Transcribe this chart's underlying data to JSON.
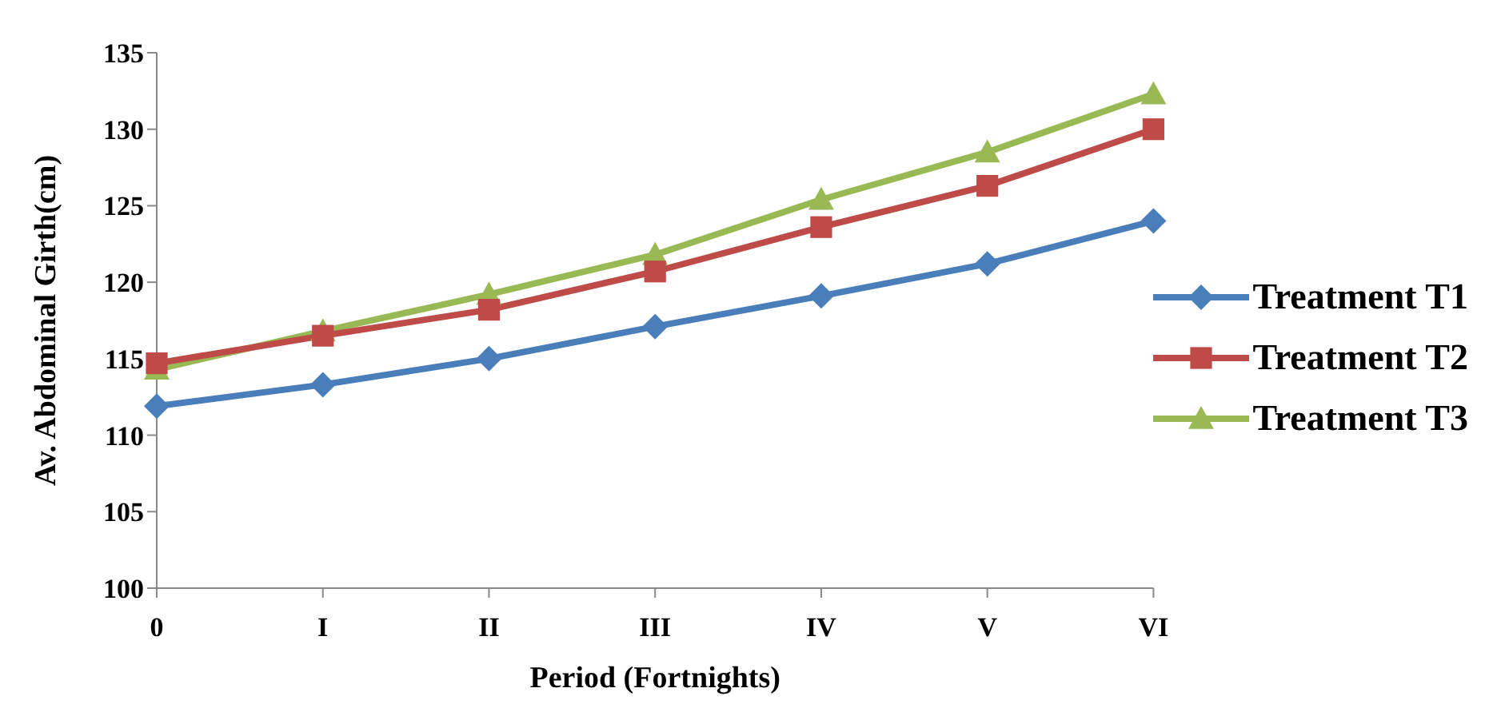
{
  "chart_data": {
    "type": "line",
    "xlabel": "Period (Fortnights)",
    "ylabel": "Av. Abdominal Girth(cm)",
    "categories": [
      "0",
      "I",
      "II",
      "III",
      "IV",
      "V",
      "VI"
    ],
    "series": [
      {
        "name": "Treatment T1",
        "color": "#4a7ebb",
        "marker": "diamond",
        "values": [
          111.9,
          113.3,
          115.0,
          117.1,
          119.1,
          121.2,
          124.0
        ]
      },
      {
        "name": "Treatment T2",
        "color": "#be4b48",
        "marker": "square",
        "values": [
          114.7,
          116.5,
          118.2,
          120.7,
          123.6,
          126.3,
          130.0
        ]
      },
      {
        "name": "Treatment T3",
        "color": "#98b954",
        "marker": "triangle",
        "values": [
          114.3,
          116.8,
          119.2,
          121.8,
          125.4,
          128.5,
          132.3
        ]
      }
    ],
    "ylim": [
      100,
      135
    ],
    "yticks": [
      100,
      105,
      110,
      115,
      120,
      125,
      130,
      135
    ],
    "grid": false,
    "legend": "right",
    "line_style": "solid"
  }
}
